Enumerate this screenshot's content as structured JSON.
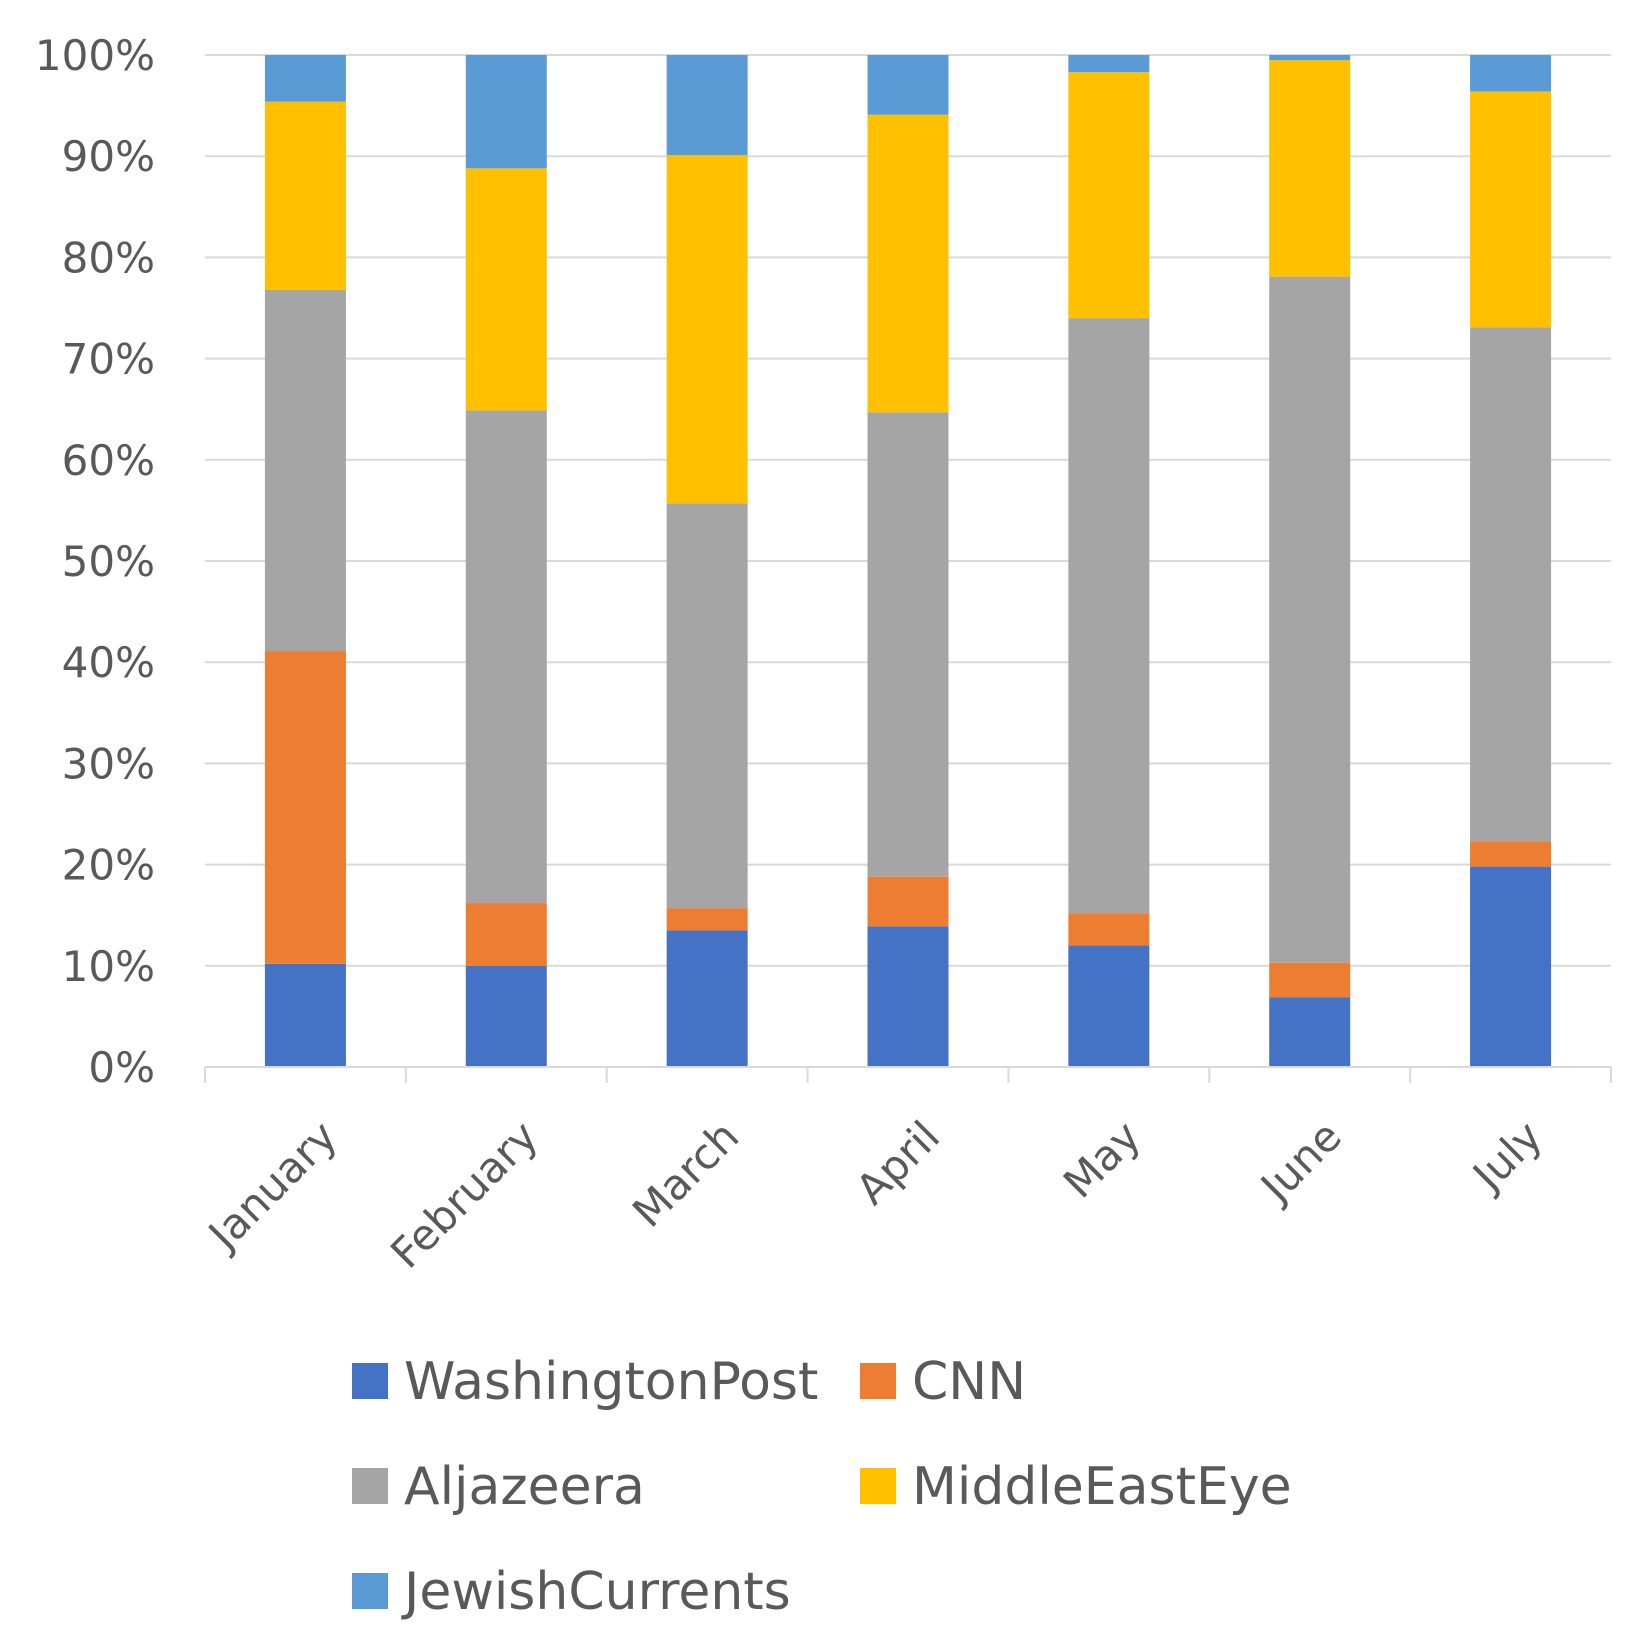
{
  "chart_data": {
    "type": "bar",
    "stacked": true,
    "percent_stacked": true,
    "categories": [
      "January",
      "February",
      "March",
      "April",
      "May",
      "June",
      "July"
    ],
    "series": [
      {
        "name": "WashingtonPost",
        "color": "#4472C4",
        "values": [
          10.2,
          10.0,
          13.5,
          13.9,
          12.0,
          6.9,
          19.8
        ]
      },
      {
        "name": "CNN",
        "color": "#ED7D31",
        "values": [
          30.9,
          6.2,
          2.2,
          4.9,
          3.2,
          3.4,
          2.5
        ]
      },
      {
        "name": "Aljazeera",
        "color": "#A5A5A5",
        "values": [
          35.7,
          48.7,
          40.0,
          45.9,
          58.8,
          67.8,
          50.8
        ]
      },
      {
        "name": "MiddleEastEye",
        "color": "#FFC000",
        "values": [
          18.6,
          23.9,
          34.4,
          29.4,
          24.3,
          21.4,
          23.3
        ]
      },
      {
        "name": "JewishCurrents",
        "color": "#5B9BD5",
        "values": [
          4.6,
          11.2,
          9.9,
          5.9,
          1.7,
          0.5,
          3.6
        ]
      }
    ],
    "y_ticks": [
      "0%",
      "10%",
      "20%",
      "30%",
      "40%",
      "50%",
      "60%",
      "70%",
      "80%",
      "90%",
      "100%"
    ],
    "ylim": [
      0,
      100
    ],
    "grid": true,
    "legend_position": "bottom",
    "title": "",
    "xlabel": "",
    "ylabel": ""
  }
}
